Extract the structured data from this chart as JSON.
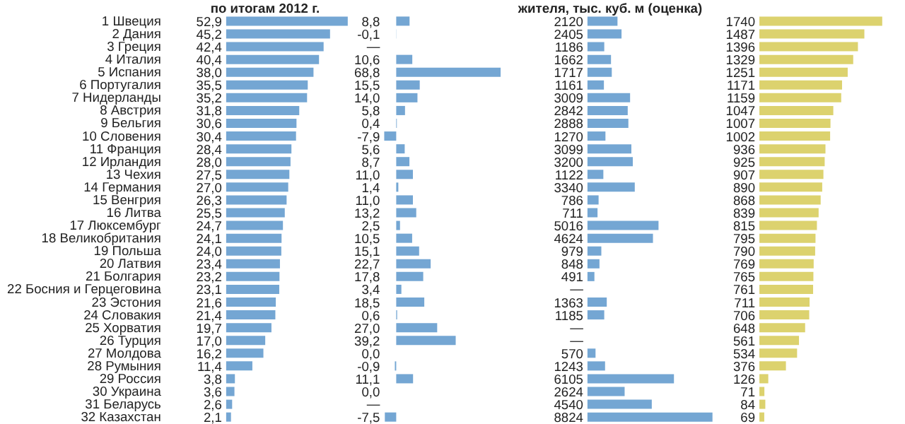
{
  "chart_data": [
    {
      "type": "bar",
      "orientation": "horizontal",
      "title": "по итогам 2012 г.",
      "color": "#74a6d3",
      "tick_labels": "y",
      "categories": [
        "1  Швеция",
        "2  Дания",
        "3  Греция",
        "4  Италия",
        "5  Испания",
        "6  Португалия",
        "7  Нидерланды",
        "8  Австрия",
        "9  Бельгия",
        "10  Словения",
        "11  Франция",
        "12  Ирландия",
        "13  Чехия",
        "14  Германия",
        "15  Венгрия",
        "16  Литва",
        "17  Люксембург",
        "18  Великобритания",
        "19  Польша",
        "20  Латвия",
        "21  Болгария",
        "22  Босния и Герцеговина",
        "23  Эстония",
        "24  Словакия",
        "25  Хорватия",
        "26  Турция",
        "27  Молдова",
        "28  Румыния",
        "29  Россия",
        "30  Украина",
        "31  Беларусь",
        "32  Казахстан"
      ],
      "values": [
        52.9,
        45.2,
        42.4,
        40.4,
        38.0,
        35.5,
        35.2,
        31.8,
        30.6,
        30.4,
        28.4,
        28.0,
        27.5,
        27.0,
        26.3,
        25.5,
        24.7,
        24.1,
        24.0,
        23.4,
        23.2,
        23.1,
        21.6,
        21.4,
        19.7,
        17.0,
        16.2,
        11.4,
        3.8,
        3.6,
        2.6,
        2.1
      ],
      "value_labels": [
        "52,9",
        "45,2",
        "42,4",
        "40,4",
        "38,0",
        "35,5",
        "35,2",
        "31,8",
        "30,6",
        "30,4",
        "28,4",
        "28,0",
        "27,5",
        "27,0",
        "26,3",
        "25,5",
        "24,7",
        "24,1",
        "24,0",
        "23,4",
        "23,2",
        "23,1",
        "21,6",
        "21,4",
        "19,7",
        "17,0",
        "16,2",
        "11,4",
        "3,8",
        "3,6",
        "2,6",
        "2,1"
      ]
    },
    {
      "type": "bar",
      "orientation": "horizontal",
      "color": "#74a6d3",
      "tick_labels": false,
      "values": [
        8.8,
        -0.1,
        null,
        10.6,
        68.8,
        15.5,
        14.0,
        5.8,
        0.4,
        -7.9,
        5.6,
        8.7,
        11.0,
        1.4,
        11.0,
        13.2,
        2.5,
        10.5,
        15.1,
        22.7,
        17.8,
        3.4,
        18.5,
        0.6,
        27.0,
        39.2,
        0.0,
        -0.9,
        11.1,
        0.0,
        null,
        -7.5
      ],
      "value_labels": [
        "8,8",
        "-0,1",
        "—",
        "10,6",
        "68,8",
        "15,5",
        "14,0",
        "5,8",
        "0,4",
        "-7,9",
        "5,6",
        "8,7",
        "11,0",
        "1,4",
        "11,0",
        "13,2",
        "2,5",
        "10,5",
        "15,1",
        "22,7",
        "17,8",
        "3,4",
        "18,5",
        "0,6",
        "27,0",
        "39,2",
        "0,0",
        "-0,9",
        "11,1",
        "0,0",
        "—",
        "-7,5"
      ]
    },
    {
      "type": "bar",
      "orientation": "horizontal",
      "title": "жителя, тыс. куб. м (оценка)",
      "color": "#74a6d3",
      "tick_labels": false,
      "values": [
        2120,
        2405,
        1186,
        1662,
        1717,
        1161,
        3009,
        2842,
        2888,
        1270,
        3099,
        3200,
        1122,
        3340,
        786,
        711,
        5016,
        4624,
        979,
        848,
        491,
        null,
        1363,
        1185,
        null,
        null,
        570,
        1243,
        6105,
        2624,
        4540,
        8824
      ],
      "value_labels": [
        "2120",
        "2405",
        "1186",
        "1662",
        "1717",
        "1161",
        "3009",
        "2842",
        "2888",
        "1270",
        "3099",
        "3200",
        "1122",
        "3340",
        "786",
        "711",
        "5016",
        "4624",
        "979",
        "848",
        "491",
        "—",
        "1363",
        "1185",
        "—",
        "—",
        "570",
        "1243",
        "6105",
        "2624",
        "4540",
        "8824"
      ]
    },
    {
      "type": "bar",
      "orientation": "horizontal",
      "color": "#dcd26e",
      "tick_labels": false,
      "values": [
        1740,
        1487,
        1396,
        1329,
        1251,
        1171,
        1159,
        1047,
        1007,
        1002,
        936,
        925,
        907,
        890,
        868,
        839,
        815,
        795,
        790,
        769,
        765,
        761,
        711,
        706,
        648,
        561,
        534,
        376,
        126,
        71,
        84,
        69
      ],
      "value_labels": [
        "1740",
        "1487",
        "1396",
        "1329",
        "1251",
        "1171",
        "1159",
        "1047",
        "1007",
        "1002",
        "936",
        "925",
        "907",
        "890",
        "868",
        "839",
        "815",
        "795",
        "790",
        "769",
        "765",
        "761",
        "711",
        "706",
        "648",
        "561",
        "534",
        "376",
        "126",
        "71",
        "84",
        "69"
      ]
    }
  ]
}
